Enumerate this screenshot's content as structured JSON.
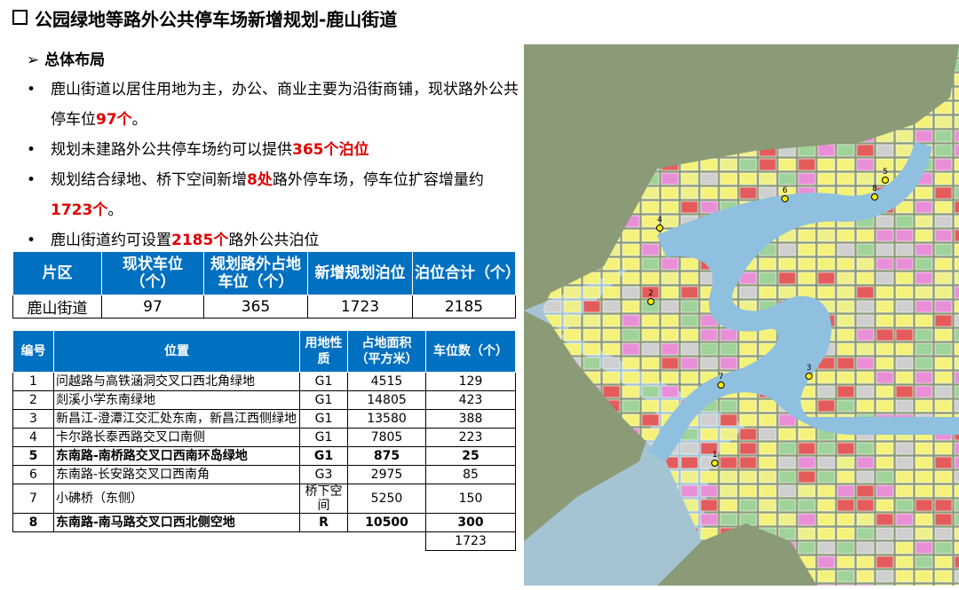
{
  "title": "公园绿地等路外公共停车场新增规划-鹿山街道",
  "section": "总体布局",
  "bullets": [
    [
      {
        "text": "鹿山街道以居住用地为主，办公、商业主要为沿街商铺，现状路外公共停车位"
      },
      {
        "text": "97个",
        "red": true
      },
      {
        "text": "。"
      }
    ],
    [
      {
        "text": "规划未建路外公共停车场约可以提供"
      },
      {
        "text": "365个泊位",
        "red": true
      }
    ],
    [
      {
        "text": "规划结合绿地、桥下空间新增"
      },
      {
        "text": "8处",
        "red": true
      },
      {
        "text": "路外停车场，停车位扩容增量约"
      },
      {
        "text": "1723个",
        "red": true
      },
      {
        "text": "。"
      }
    ],
    [
      {
        "text": "鹿山街道约可设置"
      },
      {
        "text": "2185个",
        "red": true
      },
      {
        "text": "路外公共泊位"
      }
    ]
  ],
  "summary_table": {
    "header": [
      "片区",
      "现状车位（个）",
      "规划路外占地车位（个）",
      "新增规划泊位",
      "泊位合计（个）"
    ],
    "rows": [
      [
        "鹿山街道",
        97,
        365,
        1723,
        2185
      ]
    ]
  },
  "detail_table": {
    "header": [
      "编号",
      "位置",
      "用地性质",
      "占地面积（平方米）",
      "车位数（个）"
    ],
    "rows": [
      {
        "cells": [
          1,
          "问越路与高铁涵洞交叉口西北角绿地",
          "G1",
          4515,
          129
        ]
      },
      {
        "cells": [
          2,
          "剡溪小学东南绿地",
          "G1",
          14805,
          423
        ]
      },
      {
        "cells": [
          3,
          "新昌江-澄潭江交汇处东南，新昌江西侧绿地",
          "G1",
          13580,
          388
        ]
      },
      {
        "cells": [
          4,
          "卡尔路长泰西路交叉口南侧",
          "G1",
          7805,
          223
        ]
      },
      {
        "cells": [
          5,
          "东南路-南桥路交叉口西南环岛绿地",
          "G1",
          875,
          25
        ],
        "bold": true
      },
      {
        "cells": [
          6,
          "东南路-长安路交叉口西南角",
          "G3",
          2975,
          85
        ]
      },
      {
        "cells": [
          7,
          "小砩桥（东侧）",
          "桥下空间",
          5250,
          150
        ]
      },
      {
        "cells": [
          8,
          "东南路-南马路交叉口西北侧空地",
          "R",
          10500,
          300
        ],
        "bold": true
      }
    ],
    "total": 1723
  },
  "map": {
    "markers": [
      "1",
      "2",
      "3",
      "4",
      "5",
      "6",
      "7",
      "8"
    ]
  }
}
